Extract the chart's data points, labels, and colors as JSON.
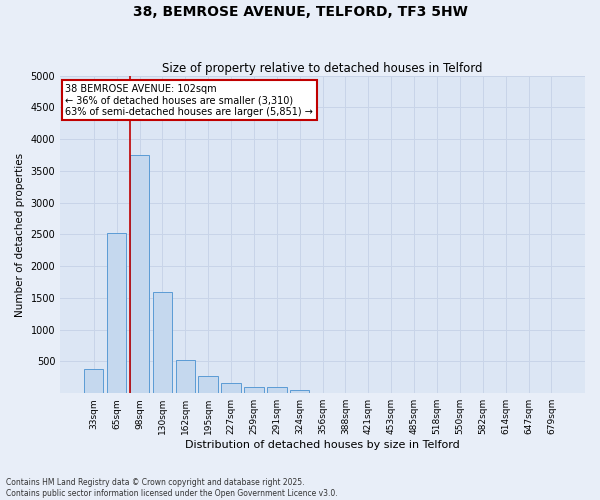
{
  "title_line1": "38, BEMROSE AVENUE, TELFORD, TF3 5HW",
  "title_line2": "Size of property relative to detached houses in Telford",
  "xlabel": "Distribution of detached houses by size in Telford",
  "ylabel": "Number of detached properties",
  "categories": [
    "33sqm",
    "65sqm",
    "98sqm",
    "130sqm",
    "162sqm",
    "195sqm",
    "227sqm",
    "259sqm",
    "291sqm",
    "324sqm",
    "356sqm",
    "388sqm",
    "421sqm",
    "453sqm",
    "485sqm",
    "518sqm",
    "550sqm",
    "582sqm",
    "614sqm",
    "647sqm",
    "679sqm"
  ],
  "values": [
    380,
    2520,
    3750,
    1600,
    530,
    270,
    160,
    100,
    100,
    50,
    0,
    0,
    0,
    0,
    0,
    0,
    0,
    0,
    0,
    0,
    0
  ],
  "bar_color": "#c5d8ee",
  "bar_edgecolor": "#5b9bd5",
  "vline_x_index": 2,
  "vline_color": "#c00000",
  "vline_label": "38 BEMROSE AVENUE: 102sqm",
  "annotation_smaller": "← 36% of detached houses are smaller (3,310)",
  "annotation_larger": "63% of semi-detached houses are larger (5,851) →",
  "ylim": [
    0,
    5000
  ],
  "yticks": [
    0,
    500,
    1000,
    1500,
    2000,
    2500,
    3000,
    3500,
    4000,
    4500,
    5000
  ],
  "grid_color": "#c8d4e8",
  "bg_color": "#e8eef8",
  "plot_bg_color": "#dce6f4",
  "annotation_box_facecolor": "#ffffff",
  "annotation_box_edgecolor": "#c00000",
  "footnote1": "Contains HM Land Registry data © Crown copyright and database right 2025.",
  "footnote2": "Contains public sector information licensed under the Open Government Licence v3.0."
}
